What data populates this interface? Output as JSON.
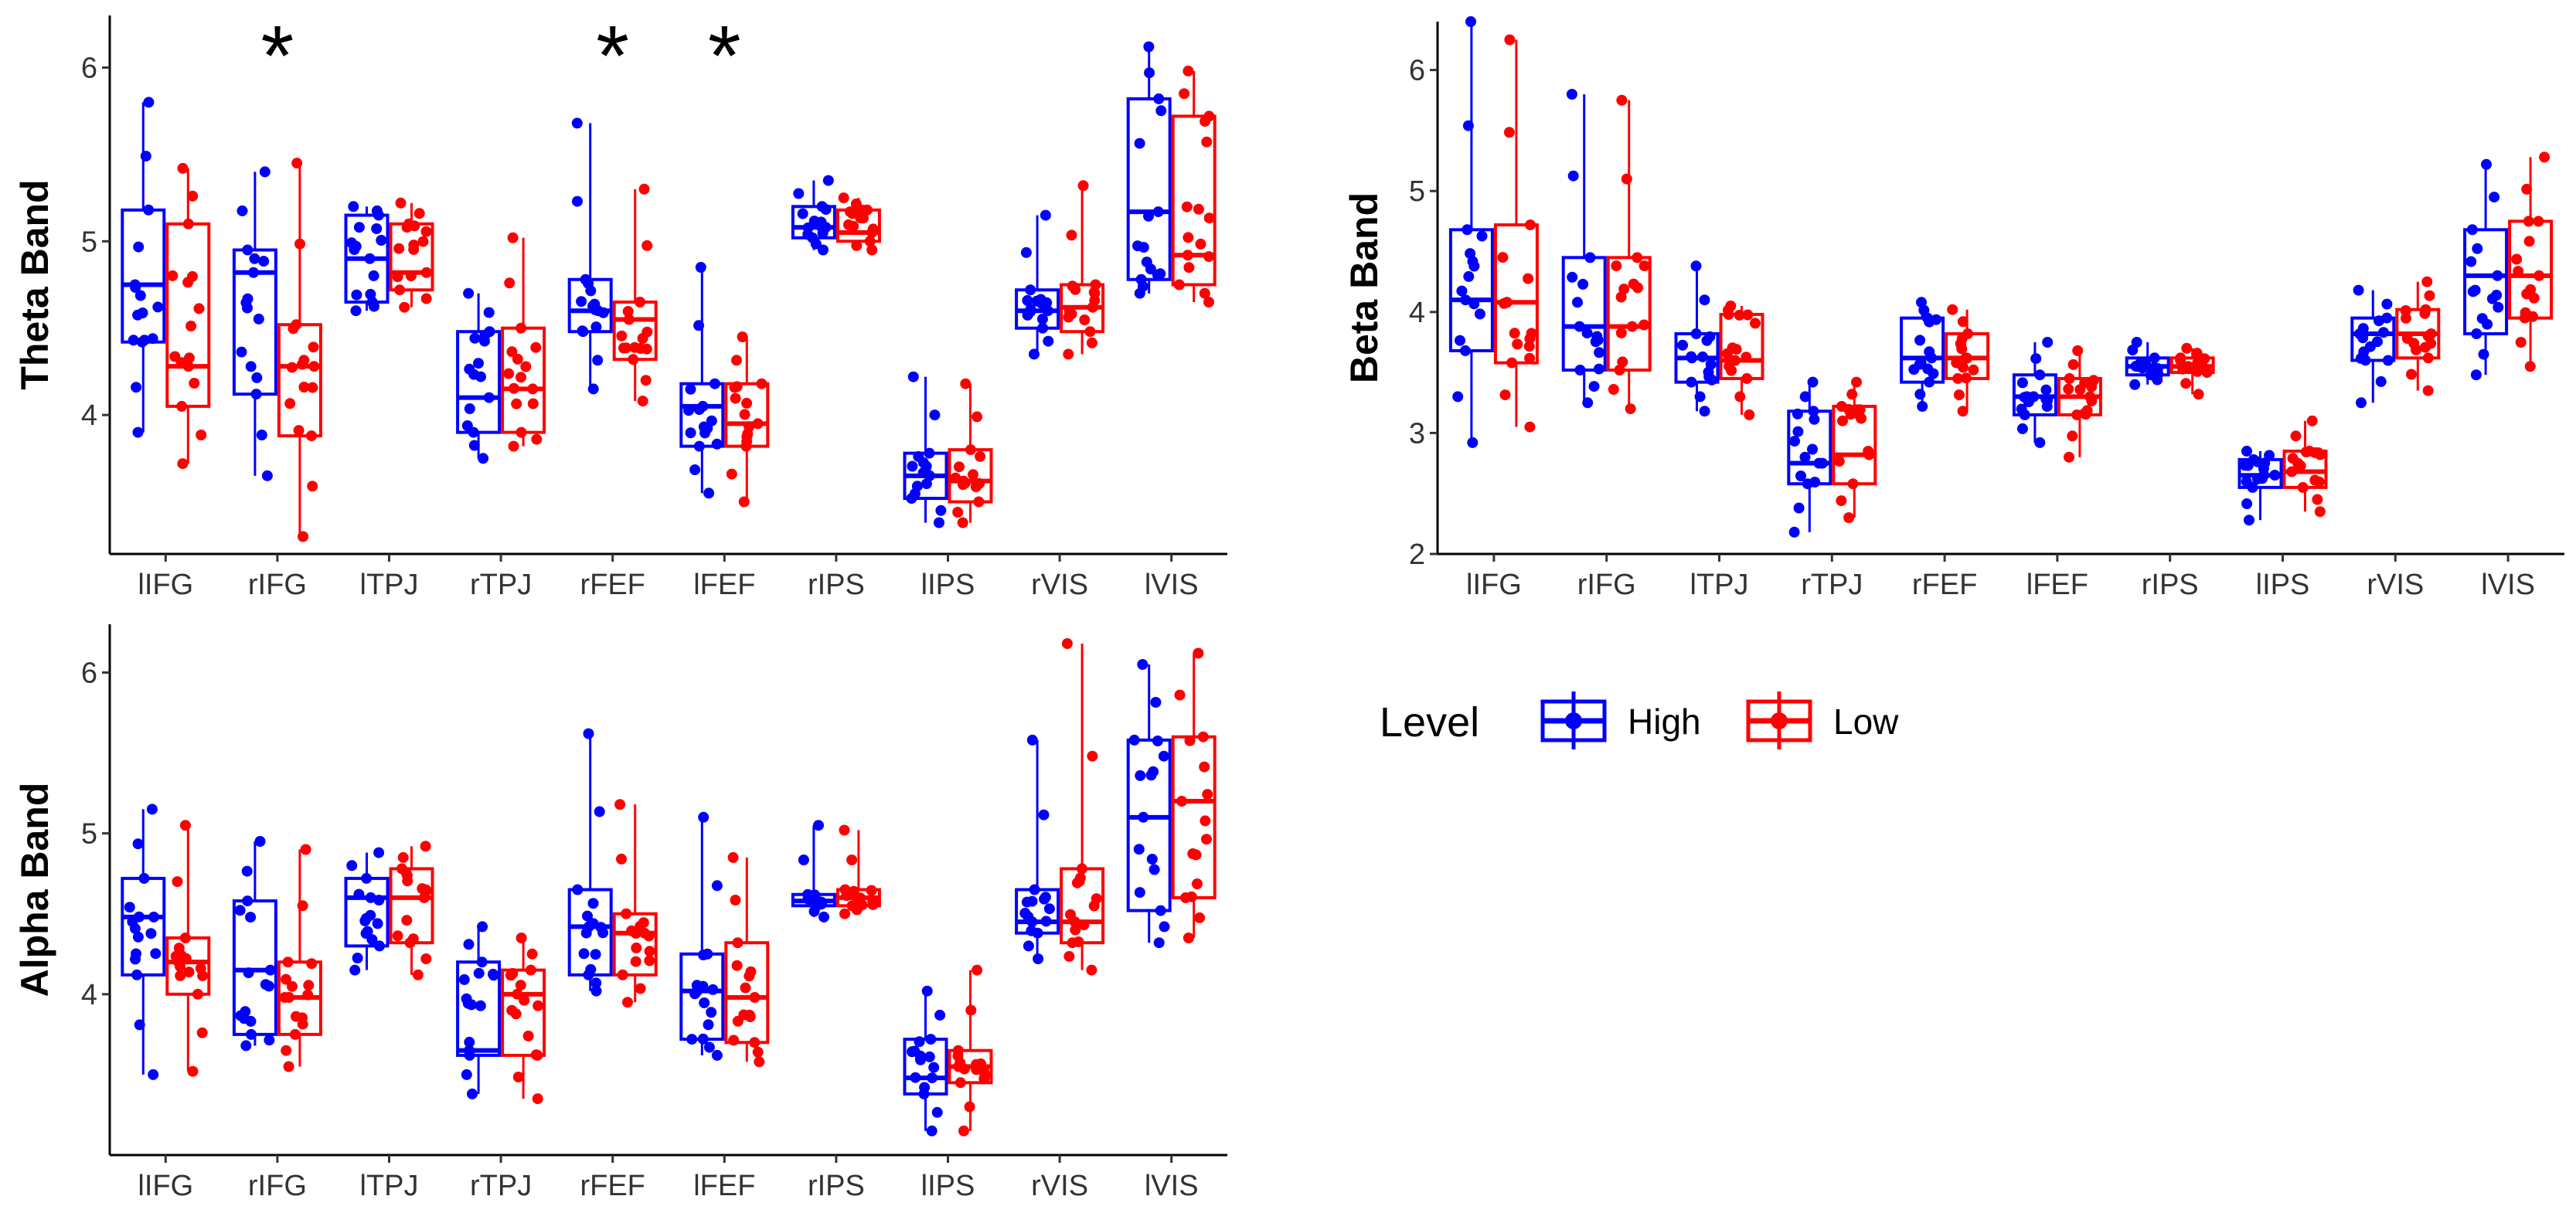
{
  "legend": {
    "title": "Level",
    "items": [
      {
        "label": "High",
        "color": "#0000FF"
      },
      {
        "label": "Low",
        "color": "#FF0000"
      }
    ]
  },
  "chart_data": [
    {
      "id": "theta",
      "type": "boxplot",
      "ylabel": "Theta Band",
      "ylim": [
        3.2,
        6.3
      ],
      "yticks": [
        4,
        5,
        6
      ],
      "categories": [
        "lIFG",
        "rIFG",
        "lTPJ",
        "rTPJ",
        "rFEF",
        "lFEF",
        "rIPS",
        "lIPS",
        "rVIS",
        "lVIS"
      ],
      "significant": [
        "rIFG",
        "rFEF",
        "lFEF"
      ],
      "star_label": "*",
      "series": [
        {
          "name": "High",
          "color": "#0000FF",
          "boxes": [
            [
              3.9,
              4.42,
              4.75,
              5.18,
              5.8
            ],
            [
              3.65,
              4.12,
              4.82,
              4.95,
              5.4
            ],
            [
              4.6,
              4.65,
              4.9,
              5.15,
              5.2
            ],
            [
              3.75,
              3.9,
              4.1,
              4.48,
              4.7
            ],
            [
              4.15,
              4.48,
              4.6,
              4.78,
              5.68
            ],
            [
              3.55,
              3.82,
              4.05,
              4.18,
              4.85
            ],
            [
              4.95,
              5.02,
              5.08,
              5.2,
              5.35
            ],
            [
              3.38,
              3.52,
              3.65,
              3.78,
              4.22
            ],
            [
              4.35,
              4.5,
              4.6,
              4.72,
              5.15
            ],
            [
              4.7,
              4.78,
              5.17,
              5.82,
              6.12
            ]
          ]
        },
        {
          "name": "Low",
          "color": "#FF0000",
          "boxes": [
            [
              3.72,
              4.05,
              4.28,
              5.1,
              5.42
            ],
            [
              3.3,
              3.88,
              4.28,
              4.52,
              5.45
            ],
            [
              4.62,
              4.72,
              4.82,
              5.1,
              5.22
            ],
            [
              3.82,
              3.9,
              4.15,
              4.5,
              5.02
            ],
            [
              4.08,
              4.32,
              4.55,
              4.65,
              5.3
            ],
            [
              3.5,
              3.82,
              3.95,
              4.18,
              4.45
            ],
            [
              4.95,
              5.0,
              5.05,
              5.18,
              5.25
            ],
            [
              3.38,
              3.5,
              3.62,
              3.8,
              4.18
            ],
            [
              4.35,
              4.48,
              4.62,
              4.75,
              5.32
            ],
            [
              4.65,
              4.75,
              4.92,
              5.72,
              5.98
            ]
          ]
        }
      ]
    },
    {
      "id": "beta",
      "type": "boxplot",
      "ylabel": "Beta Band",
      "ylim": [
        2.0,
        6.4
      ],
      "yticks": [
        2,
        3,
        4,
        5,
        6
      ],
      "categories": [
        "lIFG",
        "rIFG",
        "lTPJ",
        "rTPJ",
        "rFEF",
        "lFEF",
        "rIPS",
        "lIPS",
        "rVIS",
        "lVIS"
      ],
      "series": [
        {
          "name": "High",
          "color": "#0000FF",
          "boxes": [
            [
              2.92,
              3.68,
              4.1,
              4.68,
              6.4
            ],
            [
              3.25,
              3.52,
              3.88,
              4.45,
              5.8
            ],
            [
              3.18,
              3.42,
              3.62,
              3.82,
              4.38
            ],
            [
              2.18,
              2.58,
              2.75,
              3.18,
              3.42
            ],
            [
              3.22,
              3.42,
              3.62,
              3.95,
              4.08
            ],
            [
              2.92,
              3.15,
              3.3,
              3.48,
              3.75
            ],
            [
              3.4,
              3.48,
              3.55,
              3.62,
              3.75
            ],
            [
              2.28,
              2.55,
              2.65,
              2.78,
              2.85
            ],
            [
              3.25,
              3.6,
              3.82,
              3.95,
              4.18
            ],
            [
              3.48,
              3.82,
              4.3,
              4.68,
              5.22
            ]
          ]
        },
        {
          "name": "Low",
          "color": "#FF0000",
          "boxes": [
            [
              3.05,
              3.58,
              4.08,
              4.72,
              6.25
            ],
            [
              3.2,
              3.52,
              3.88,
              4.45,
              5.75
            ],
            [
              3.15,
              3.45,
              3.6,
              3.98,
              4.05
            ],
            [
              2.3,
              2.58,
              2.82,
              3.22,
              3.42
            ],
            [
              3.18,
              3.45,
              3.62,
              3.82,
              4.02
            ],
            [
              2.8,
              3.15,
              3.3,
              3.45,
              3.68
            ],
            [
              3.32,
              3.5,
              3.55,
              3.62,
              3.7
            ],
            [
              2.35,
              2.55,
              2.68,
              2.85,
              3.1
            ],
            [
              3.35,
              3.62,
              3.82,
              4.02,
              4.25
            ],
            [
              3.55,
              3.95,
              4.3,
              4.75,
              5.28
            ]
          ]
        }
      ]
    },
    {
      "id": "alpha",
      "type": "boxplot",
      "ylabel": "Alpha Band",
      "ylim": [
        3.0,
        6.3
      ],
      "yticks": [
        4,
        5,
        6
      ],
      "categories": [
        "lIFG",
        "rIFG",
        "lTPJ",
        "rTPJ",
        "rFEF",
        "lFEF",
        "rIPS",
        "lIPS",
        "rVIS",
        "lVIS"
      ],
      "series": [
        {
          "name": "High",
          "color": "#0000FF",
          "boxes": [
            [
              3.5,
              4.12,
              4.48,
              4.72,
              5.15
            ],
            [
              3.68,
              3.75,
              4.15,
              4.58,
              4.95
            ],
            [
              4.15,
              4.3,
              4.6,
              4.72,
              4.88
            ],
            [
              3.38,
              3.62,
              3.65,
              4.2,
              4.42
            ],
            [
              4.02,
              4.12,
              4.42,
              4.65,
              5.62
            ],
            [
              3.62,
              3.72,
              4.02,
              4.25,
              5.1
            ],
            [
              4.48,
              4.55,
              4.58,
              4.62,
              5.05
            ],
            [
              3.15,
              3.38,
              3.48,
              3.72,
              4.02
            ],
            [
              4.22,
              4.38,
              4.45,
              4.65,
              5.58
            ],
            [
              4.32,
              4.52,
              5.1,
              5.58,
              6.05
            ]
          ]
        },
        {
          "name": "Low",
          "color": "#FF0000",
          "boxes": [
            [
              3.52,
              4.0,
              4.2,
              4.35,
              5.05
            ],
            [
              3.55,
              3.75,
              3.98,
              4.2,
              4.9
            ],
            [
              4.12,
              4.32,
              4.6,
              4.78,
              4.92
            ],
            [
              3.35,
              3.62,
              4.0,
              4.15,
              4.35
            ],
            [
              3.95,
              4.12,
              4.38,
              4.5,
              5.18
            ],
            [
              3.58,
              3.7,
              3.98,
              4.32,
              4.85
            ],
            [
              4.5,
              4.55,
              4.6,
              4.65,
              5.02
            ],
            [
              3.15,
              3.45,
              3.55,
              3.65,
              4.15
            ],
            [
              4.15,
              4.32,
              4.45,
              4.78,
              6.18
            ],
            [
              4.35,
              4.6,
              5.2,
              5.6,
              6.12
            ]
          ]
        }
      ]
    }
  ]
}
